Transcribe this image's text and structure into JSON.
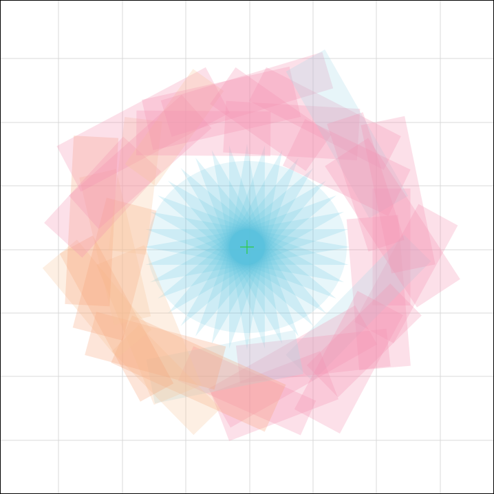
{
  "canvas": {
    "background": "#ffffff",
    "border_color": "#000000",
    "grid": {
      "visible": true,
      "color": "#d9d9d9",
      "columns": 8,
      "rows": 8
    }
  },
  "center_marker": {
    "shape": "crosshair",
    "color": "#2ecc40"
  },
  "inner_burst": {
    "description_color": "#5bc0de",
    "petal_count": 18,
    "fill": "#5bc0de",
    "opacity": 0.18
  },
  "outer_ring": {
    "rect_count": 36,
    "fills": [
      "#f48fb1",
      "#f48fb1",
      "#f7a278",
      "#f48fb1",
      "#a8dceb",
      "#f9c49a"
    ],
    "opacity": 0.28
  }
}
